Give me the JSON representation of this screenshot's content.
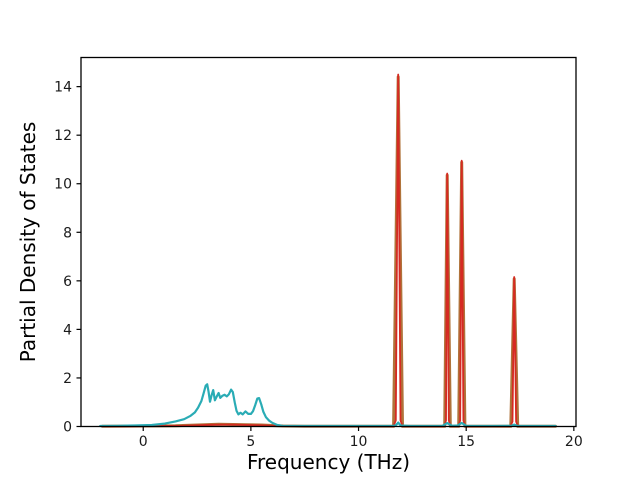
{
  "figure": {
    "background": "#ffffff",
    "axis_color": "#000000",
    "tick_label_color": "#1a1a1a"
  },
  "chart_data": {
    "type": "line",
    "title": "",
    "xlabel": "Frequency (THz)",
    "ylabel": "Partial Density of States",
    "xlim": [
      -2.89,
      20.1
    ],
    "ylim": [
      0,
      15.2
    ],
    "xticks": [
      0,
      5,
      10,
      15,
      20
    ],
    "yticks": [
      0,
      2,
      4,
      6,
      8,
      10,
      12,
      14
    ],
    "grid": false,
    "legend": "none",
    "series": [
      {
        "name": "pdos-tan-series",
        "color": "#b0733a",
        "linewidth": 3,
        "points": [
          [
            -1.9,
            0.01
          ],
          [
            1.5,
            0.03
          ],
          [
            2.5,
            0.06
          ],
          [
            3.5,
            0.09
          ],
          [
            4.5,
            0.08
          ],
          [
            5.5,
            0.06
          ],
          [
            6.5,
            0.02
          ],
          [
            7.5,
            0.01
          ],
          [
            11.63,
            0.01
          ],
          [
            11.84,
            14.4
          ],
          [
            12.04,
            0.01
          ],
          [
            13.5,
            0.01
          ],
          [
            14.0,
            0.01
          ],
          [
            14.12,
            10.35
          ],
          [
            14.26,
            0.01
          ],
          [
            14.65,
            0.01
          ],
          [
            14.79,
            10.88
          ],
          [
            14.94,
            0.01
          ],
          [
            16.0,
            0.01
          ],
          [
            17.07,
            0.01
          ],
          [
            17.23,
            6.08
          ],
          [
            17.39,
            0.01
          ],
          [
            18.5,
            0.01
          ],
          [
            19.15,
            0.01
          ]
        ]
      },
      {
        "name": "pdos-red-series",
        "color": "#d62a22",
        "linewidth": 1.8,
        "points": [
          [
            -1.9,
            0.01
          ],
          [
            -0.5,
            0.01
          ],
          [
            0.8,
            0.02
          ],
          [
            1.8,
            0.03
          ],
          [
            2.5,
            0.05
          ],
          [
            3.1,
            0.07
          ],
          [
            3.7,
            0.08
          ],
          [
            4.3,
            0.08
          ],
          [
            4.9,
            0.06
          ],
          [
            5.5,
            0.05
          ],
          [
            6.1,
            0.03
          ],
          [
            6.7,
            0.02
          ],
          [
            7.5,
            0.01
          ],
          [
            9.5,
            0.01
          ],
          [
            11.62,
            0.01
          ],
          [
            11.73,
            0.25
          ],
          [
            11.84,
            14.5
          ],
          [
            11.95,
            0.25
          ],
          [
            12.05,
            0.01
          ],
          [
            13.3,
            0.01
          ],
          [
            13.99,
            0.01
          ],
          [
            14.06,
            0.25
          ],
          [
            14.12,
            10.42
          ],
          [
            14.19,
            0.25
          ],
          [
            14.27,
            0.01
          ],
          [
            14.64,
            0.01
          ],
          [
            14.72,
            0.25
          ],
          [
            14.79,
            10.95
          ],
          [
            14.87,
            0.25
          ],
          [
            14.95,
            0.01
          ],
          [
            16.0,
            0.01
          ],
          [
            17.05,
            0.01
          ],
          [
            17.15,
            0.2
          ],
          [
            17.23,
            6.16
          ],
          [
            17.32,
            0.2
          ],
          [
            17.4,
            0.01
          ],
          [
            18.4,
            0.01
          ],
          [
            19.15,
            0.01
          ]
        ]
      },
      {
        "name": "pdos-teal-series",
        "color": "#2aacb5",
        "linewidth": 2.2,
        "points": [
          [
            -2.0,
            0.02
          ],
          [
            -1.2,
            0.03
          ],
          [
            -0.4,
            0.04
          ],
          [
            0.4,
            0.06
          ],
          [
            1.0,
            0.12
          ],
          [
            1.5,
            0.21
          ],
          [
            1.9,
            0.3
          ],
          [
            2.2,
            0.44
          ],
          [
            2.4,
            0.58
          ],
          [
            2.55,
            0.78
          ],
          [
            2.7,
            1.05
          ],
          [
            2.8,
            1.35
          ],
          [
            2.9,
            1.68
          ],
          [
            2.97,
            1.74
          ],
          [
            3.03,
            1.45
          ],
          [
            3.1,
            1.02
          ],
          [
            3.18,
            1.3
          ],
          [
            3.25,
            1.5
          ],
          [
            3.33,
            1.08
          ],
          [
            3.42,
            1.25
          ],
          [
            3.5,
            1.38
          ],
          [
            3.58,
            1.18
          ],
          [
            3.68,
            1.27
          ],
          [
            3.78,
            1.31
          ],
          [
            3.88,
            1.24
          ],
          [
            3.98,
            1.33
          ],
          [
            4.08,
            1.52
          ],
          [
            4.16,
            1.42
          ],
          [
            4.25,
            1.0
          ],
          [
            4.33,
            0.65
          ],
          [
            4.42,
            0.5
          ],
          [
            4.52,
            0.57
          ],
          [
            4.62,
            0.5
          ],
          [
            4.75,
            0.62
          ],
          [
            4.88,
            0.52
          ],
          [
            5.0,
            0.52
          ],
          [
            5.1,
            0.63
          ],
          [
            5.2,
            0.88
          ],
          [
            5.3,
            1.15
          ],
          [
            5.38,
            1.17
          ],
          [
            5.48,
            0.92
          ],
          [
            5.58,
            0.6
          ],
          [
            5.7,
            0.38
          ],
          [
            5.85,
            0.24
          ],
          [
            6.0,
            0.15
          ],
          [
            6.2,
            0.07
          ],
          [
            6.45,
            0.03
          ],
          [
            7.0,
            0.02
          ],
          [
            8.5,
            0.02
          ],
          [
            10.0,
            0.02
          ],
          [
            11.55,
            0.02
          ],
          [
            11.72,
            0.04
          ],
          [
            11.84,
            0.16
          ],
          [
            11.96,
            0.04
          ],
          [
            12.4,
            0.02
          ],
          [
            13.9,
            0.03
          ],
          [
            14.12,
            0.14
          ],
          [
            14.35,
            0.03
          ],
          [
            14.6,
            0.04
          ],
          [
            14.79,
            0.15
          ],
          [
            15.0,
            0.03
          ],
          [
            16.2,
            0.02
          ],
          [
            17.1,
            0.03
          ],
          [
            17.23,
            0.08
          ],
          [
            17.4,
            0.02
          ],
          [
            18.3,
            0.02
          ],
          [
            19.15,
            0.02
          ]
        ]
      }
    ]
  }
}
